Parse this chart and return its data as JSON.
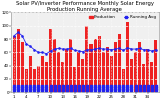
{
  "title": "Solar PV/Inverter Performance Monthly Solar Energy Production Running Average",
  "bar_values": [
    85,
    95,
    75,
    35,
    55,
    35,
    40,
    55,
    45,
    95,
    80,
    60,
    45,
    65,
    80,
    38,
    60,
    50,
    100,
    72,
    80,
    85,
    60,
    68,
    55,
    75,
    88,
    35,
    105,
    50,
    60,
    75,
    42,
    65,
    45,
    78
  ],
  "running_avg": [
    85,
    90,
    85,
    73,
    69,
    64,
    60,
    60,
    58,
    62,
    65,
    66,
    65,
    65,
    66,
    63,
    62,
    61,
    64,
    64,
    65,
    66,
    65,
    65,
    64,
    65,
    66,
    63,
    67,
    65,
    65,
    66,
    64,
    64,
    62,
    64
  ],
  "bar_color": "#ee2222",
  "avg_color": "#2222ee",
  "dot_color": "#2222ee",
  "bg_color": "#ffffff",
  "plot_bg": "#f0f0f0",
  "grid_color": "#ffffff",
  "grid_alpha": 0.9,
  "ylim": [
    0,
    120
  ],
  "yticks": [
    0,
    20,
    40,
    60,
    80,
    100,
    120
  ],
  "title_fontsize": 3.8,
  "tick_fontsize": 2.8,
  "legend_fontsize": 3.0
}
